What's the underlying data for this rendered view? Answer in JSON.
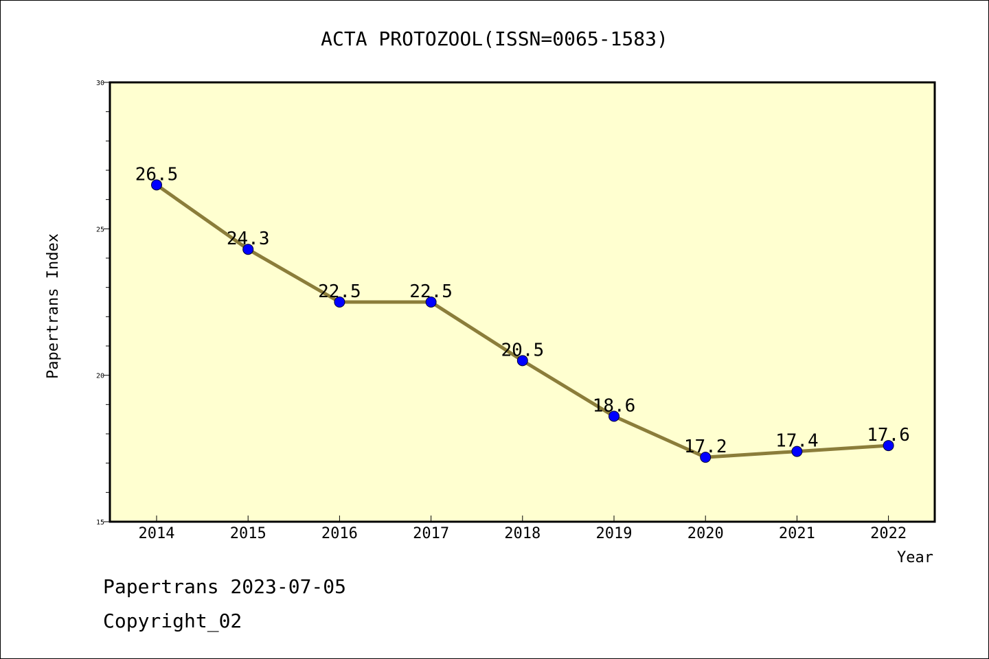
{
  "chart_data": {
    "type": "line",
    "title": "ACTA PROTOZOOL(ISSN=0065-1583)",
    "xlabel": "Year",
    "ylabel": "Papertrans Index",
    "x": [
      "2014",
      "2015",
      "2016",
      "2017",
      "2018",
      "2019",
      "2020",
      "2021",
      "2022"
    ],
    "values": [
      26.5,
      24.3,
      22.5,
      22.5,
      20.5,
      18.6,
      17.2,
      17.4,
      17.6
    ],
    "data_labels": [
      "26.5",
      "24.3",
      "22.5",
      "22.5",
      "20.5",
      "18.6",
      "17.2",
      "17.4",
      "17.6"
    ],
    "ylim": [
      15,
      30
    ],
    "yticks": [
      "15",
      "20",
      "25",
      "30"
    ],
    "grid": false,
    "colors": {
      "plot_background": "#ffffd0",
      "line": "#8b7d3a",
      "marker": "#0000ff"
    }
  },
  "footer": {
    "line1": "Papertrans 2023-07-05",
    "line2": "Copyright_02"
  }
}
